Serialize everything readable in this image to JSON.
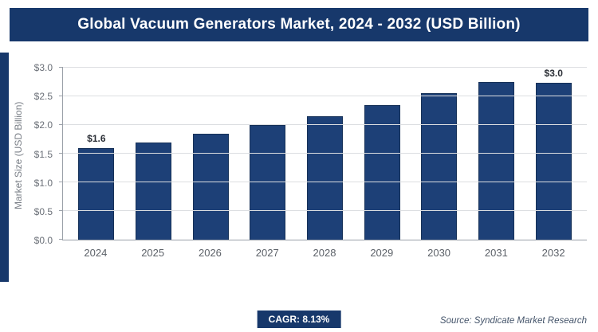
{
  "header": {
    "title": "Global Vacuum Generators Market, 2024 - 2032 (USD Billion)"
  },
  "chart_data": {
    "type": "bar",
    "categories": [
      "2024",
      "2025",
      "2026",
      "2027",
      "2028",
      "2029",
      "2030",
      "2031",
      "2032"
    ],
    "values": [
      1.6,
      1.7,
      1.85,
      2.0,
      2.15,
      2.35,
      2.55,
      2.75,
      3.0
    ],
    "title": "Global Vacuum Generators Market, 2024 - 2032 (USD Billion)",
    "xlabel": "",
    "ylabel": "Market Size (USD Billion)",
    "ylim": [
      0,
      3.0
    ],
    "yticks": [
      "$0.0",
      "$0.5",
      "$1.0",
      "$1.5",
      "$2.0",
      "$2.5",
      "$3.0"
    ],
    "grid": "horizontal",
    "legend": "none",
    "bar_color": "#1d4077",
    "annotations": [
      {
        "index": 0,
        "label": "$1.6"
      },
      {
        "index": 8,
        "label": "$3.0"
      }
    ]
  },
  "footer": {
    "cagr_label": "CAGR: 8.13%",
    "source": "Source: Syndicate Market Research"
  },
  "colors": {
    "brand_navy": "#17386b",
    "bar_fill": "#1d4077",
    "gridline": "#dcdee1",
    "axis": "#9aa0a8"
  }
}
